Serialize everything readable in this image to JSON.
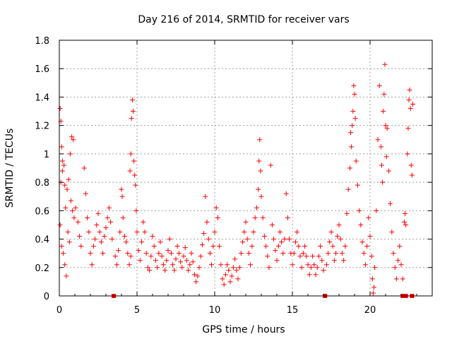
{
  "chart_data": {
    "type": "scatter",
    "title": "Day 216 of 2014, SRMTID for receiver vars",
    "xlabel": "GPS time / hours",
    "ylabel": "SRMTID / TECUs",
    "xlim": [
      0,
      24
    ],
    "ylim": [
      0,
      1.8
    ],
    "grid": true,
    "marker": "+",
    "color": "#ff0000",
    "x_ticks": [
      0,
      5,
      10,
      15,
      20
    ],
    "x_tick_labels": [
      "0",
      "5",
      "10",
      "15",
      "20"
    ],
    "y_ticks": [
      0,
      0.2,
      0.4,
      0.6,
      0.8,
      1.0,
      1.2,
      1.4,
      1.6,
      1.8
    ],
    "y_tick_labels": [
      "0",
      "0.2",
      "0.4",
      "0.6",
      "0.8",
      "1",
      "1.2",
      "1.4",
      "1.6",
      "1.8"
    ],
    "zero_markers": [
      3.5,
      17.1,
      22.1,
      22.3,
      22.7
    ],
    "series": [
      {
        "name": "SRMTID",
        "points": [
          [
            0.05,
            1.32
          ],
          [
            0.1,
            1.23
          ],
          [
            0.15,
            1.05
          ],
          [
            0.2,
            0.95
          ],
          [
            0.1,
            0.8
          ],
          [
            0.2,
            0.88
          ],
          [
            0.3,
            0.92
          ],
          [
            0.35,
            0.78
          ],
          [
            0.4,
            0.62
          ],
          [
            0.5,
            0.75
          ],
          [
            0.6,
            0.82
          ],
          [
            0.7,
            1.0
          ],
          [
            0.8,
            1.12
          ],
          [
            0.9,
            1.1
          ],
          [
            0.75,
            0.67
          ],
          [
            0.85,
            0.6
          ],
          [
            0.95,
            0.55
          ],
          [
            1.05,
            0.62
          ],
          [
            0.55,
            0.45
          ],
          [
            0.65,
            0.38
          ],
          [
            0.25,
            0.3
          ],
          [
            0.45,
            0.14
          ],
          [
            0.35,
            0.22
          ],
          [
            0.15,
            0.35
          ],
          [
            0.05,
            0.5
          ],
          [
            1.2,
            0.52
          ],
          [
            1.3,
            0.42
          ],
          [
            1.4,
            0.35
          ],
          [
            1.6,
            0.9
          ],
          [
            1.7,
            0.72
          ],
          [
            1.8,
            0.55
          ],
          [
            1.9,
            0.45
          ],
          [
            2.0,
            0.3
          ],
          [
            2.1,
            0.22
          ],
          [
            2.2,
            0.35
          ],
          [
            2.3,
            0.4
          ],
          [
            2.4,
            0.5
          ],
          [
            2.5,
            0.58
          ],
          [
            2.6,
            0.45
          ],
          [
            2.7,
            0.38
          ],
          [
            2.8,
            0.3
          ],
          [
            2.9,
            0.42
          ],
          [
            3.0,
            0.48
          ],
          [
            3.1,
            0.55
          ],
          [
            3.2,
            0.62
          ],
          [
            3.3,
            0.52
          ],
          [
            3.4,
            0.4
          ],
          [
            3.6,
            0.28
          ],
          [
            3.7,
            0.22
          ],
          [
            3.8,
            0.32
          ],
          [
            3.9,
            0.45
          ],
          [
            4.0,
            0.75
          ],
          [
            4.05,
            0.7
          ],
          [
            4.1,
            0.55
          ],
          [
            4.2,
            0.42
          ],
          [
            4.3,
            0.38
          ],
          [
            4.4,
            0.3
          ],
          [
            4.5,
            0.22
          ],
          [
            4.6,
            0.28
          ],
          [
            4.55,
            0.88
          ],
          [
            4.6,
            1.0
          ],
          [
            4.65,
            1.25
          ],
          [
            4.7,
            1.38
          ],
          [
            4.75,
            1.3
          ],
          [
            4.8,
            0.95
          ],
          [
            4.85,
            0.85
          ],
          [
            4.9,
            0.78
          ],
          [
            4.95,
            0.6
          ],
          [
            5.0,
            0.45
          ],
          [
            5.1,
            0.32
          ],
          [
            5.2,
            0.25
          ],
          [
            5.3,
            0.38
          ],
          [
            5.4,
            0.52
          ],
          [
            5.5,
            0.45
          ],
          [
            5.6,
            0.3
          ],
          [
            5.7,
            0.2
          ],
          [
            5.8,
            0.18
          ],
          [
            5.9,
            0.28
          ],
          [
            6.0,
            0.42
          ],
          [
            6.1,
            0.35
          ],
          [
            6.2,
            0.25
          ],
          [
            6.3,
            0.2
          ],
          [
            6.4,
            0.3
          ],
          [
            6.5,
            0.38
          ],
          [
            6.6,
            0.28
          ],
          [
            6.7,
            0.22
          ],
          [
            6.8,
            0.18
          ],
          [
            6.9,
            0.25
          ],
          [
            7.0,
            0.32
          ],
          [
            7.1,
            0.4
          ],
          [
            7.2,
            0.3
          ],
          [
            7.3,
            0.22
          ],
          [
            7.4,
            0.18
          ],
          [
            7.5,
            0.26
          ],
          [
            7.6,
            0.35
          ],
          [
            7.7,
            0.3
          ],
          [
            7.8,
            0.24
          ],
          [
            7.9,
            0.2
          ],
          [
            8.0,
            0.28
          ],
          [
            8.1,
            0.34
          ],
          [
            8.2,
            0.25
          ],
          [
            8.3,
            0.18
          ],
          [
            8.4,
            0.22
          ],
          [
            8.5,
            0.3
          ],
          [
            8.6,
            0.24
          ],
          [
            8.7,
            0.15
          ],
          [
            8.8,
            0.1
          ],
          [
            8.9,
            0.14
          ],
          [
            9.0,
            0.2
          ],
          [
            9.1,
            0.28
          ],
          [
            9.2,
            0.36
          ],
          [
            9.3,
            0.44
          ],
          [
            9.4,
            0.7
          ],
          [
            9.5,
            0.52
          ],
          [
            9.6,
            0.4
          ],
          [
            9.7,
            0.3
          ],
          [
            9.8,
            0.22
          ],
          [
            9.9,
            0.35
          ],
          [
            10.0,
            0.45
          ],
          [
            10.1,
            0.62
          ],
          [
            10.2,
            0.55
          ],
          [
            10.3,
            0.35
          ],
          [
            10.4,
            0.22
          ],
          [
            10.5,
            0.12
          ],
          [
            10.6,
            0.08
          ],
          [
            10.7,
            0.15
          ],
          [
            10.8,
            0.22
          ],
          [
            10.9,
            0.18
          ],
          [
            11.0,
            0.1
          ],
          [
            11.1,
            0.14
          ],
          [
            11.2,
            0.2
          ],
          [
            11.3,
            0.26
          ],
          [
            11.4,
            0.18
          ],
          [
            11.5,
            0.12
          ],
          [
            11.6,
            0.2
          ],
          [
            11.7,
            0.3
          ],
          [
            11.8,
            0.38
          ],
          [
            11.9,
            0.45
          ],
          [
            12.0,
            0.52
          ],
          [
            12.1,
            0.4
          ],
          [
            12.2,
            0.3
          ],
          [
            12.3,
            0.22
          ],
          [
            12.4,
            0.35
          ],
          [
            12.5,
            0.45
          ],
          [
            12.6,
            0.55
          ],
          [
            12.7,
            0.62
          ],
          [
            12.8,
            0.75
          ],
          [
            12.85,
            0.95
          ],
          [
            12.9,
            1.1
          ],
          [
            12.95,
            0.88
          ],
          [
            13.0,
            0.7
          ],
          [
            13.1,
            0.55
          ],
          [
            13.2,
            0.42
          ],
          [
            13.3,
            0.35
          ],
          [
            13.4,
            0.28
          ],
          [
            13.5,
            0.2
          ],
          [
            13.6,
            0.92
          ],
          [
            13.7,
            0.5
          ],
          [
            13.8,
            0.4
          ],
          [
            13.9,
            0.32
          ],
          [
            14.0,
            0.25
          ],
          [
            14.1,
            0.35
          ],
          [
            14.2,
            0.45
          ],
          [
            14.3,
            0.38
          ],
          [
            14.4,
            0.3
          ],
          [
            14.5,
            0.4
          ],
          [
            14.6,
            0.72
          ],
          [
            14.7,
            0.55
          ],
          [
            14.8,
            0.4
          ],
          [
            14.9,
            0.3
          ],
          [
            15.0,
            0.22
          ],
          [
            15.1,
            0.3
          ],
          [
            15.2,
            0.38
          ],
          [
            15.3,
            0.45
          ],
          [
            15.4,
            0.35
          ],
          [
            15.5,
            0.28
          ],
          [
            15.6,
            0.2
          ],
          [
            15.7,
            0.3
          ],
          [
            15.8,
            0.35
          ],
          [
            15.9,
            0.28
          ],
          [
            16.0,
            0.22
          ],
          [
            16.1,
            0.15
          ],
          [
            16.2,
            0.2
          ],
          [
            16.3,
            0.28
          ],
          [
            16.4,
            0.22
          ],
          [
            16.5,
            0.15
          ],
          [
            16.6,
            0.2
          ],
          [
            16.7,
            0.28
          ],
          [
            16.8,
            0.35
          ],
          [
            16.9,
            0.25
          ],
          [
            17.0,
            0.18
          ],
          [
            17.2,
            0.22
          ],
          [
            17.3,
            0.3
          ],
          [
            17.4,
            0.38
          ],
          [
            17.5,
            0.45
          ],
          [
            17.6,
            0.35
          ],
          [
            17.7,
            0.25
          ],
          [
            17.8,
            0.3
          ],
          [
            17.9,
            0.42
          ],
          [
            18.0,
            0.5
          ],
          [
            18.1,
            0.4
          ],
          [
            18.2,
            0.3
          ],
          [
            18.3,
            0.25
          ],
          [
            18.4,
            0.35
          ],
          [
            18.5,
            0.58
          ],
          [
            18.6,
            0.75
          ],
          [
            18.7,
            0.9
          ],
          [
            18.75,
            1.15
          ],
          [
            18.8,
            1.05
          ],
          [
            18.85,
            1.2
          ],
          [
            18.9,
            1.3
          ],
          [
            18.95,
            1.48
          ],
          [
            19.0,
            1.42
          ],
          [
            19.05,
            1.25
          ],
          [
            19.1,
            0.95
          ],
          [
            19.2,
            0.78
          ],
          [
            19.3,
            0.6
          ],
          [
            19.4,
            0.5
          ],
          [
            19.5,
            0.38
          ],
          [
            19.6,
            0.3
          ],
          [
            19.7,
            0.22
          ],
          [
            19.8,
            0.35
          ],
          [
            19.9,
            0.55
          ],
          [
            20.0,
            0.42
          ],
          [
            20.1,
            0.28
          ],
          [
            20.15,
            0.12
          ],
          [
            20.2,
            0.02
          ],
          [
            20.25,
            0.06
          ],
          [
            20.3,
            0.2
          ],
          [
            20.4,
            0.6
          ],
          [
            20.5,
            1.1
          ],
          [
            20.6,
            1.48
          ],
          [
            20.7,
            1.05
          ],
          [
            20.75,
            0.92
          ],
          [
            20.8,
            0.8
          ],
          [
            20.85,
            1.3
          ],
          [
            20.9,
            1.42
          ],
          [
            20.95,
            1.63
          ],
          [
            21.0,
            1.2
          ],
          [
            21.05,
            0.98
          ],
          [
            21.1,
            1.18
          ],
          [
            21.2,
            0.88
          ],
          [
            21.3,
            0.65
          ],
          [
            21.4,
            0.45
          ],
          [
            21.5,
            0.3
          ],
          [
            21.6,
            0.2
          ],
          [
            21.7,
            0.12
          ],
          [
            21.8,
            0.25
          ],
          [
            21.9,
            0.35
          ],
          [
            22.0,
            0.22
          ],
          [
            22.1,
            0.12
          ],
          [
            22.2,
            0.52
          ],
          [
            22.25,
            0.58
          ],
          [
            22.3,
            0.5
          ],
          [
            22.4,
            1.0
          ],
          [
            22.45,
            1.18
          ],
          [
            22.5,
            1.38
          ],
          [
            22.55,
            1.45
          ],
          [
            22.6,
            1.32
          ],
          [
            22.65,
            0.92
          ],
          [
            22.7,
            0.85
          ],
          [
            22.75,
            1.35
          ]
        ]
      }
    ]
  }
}
